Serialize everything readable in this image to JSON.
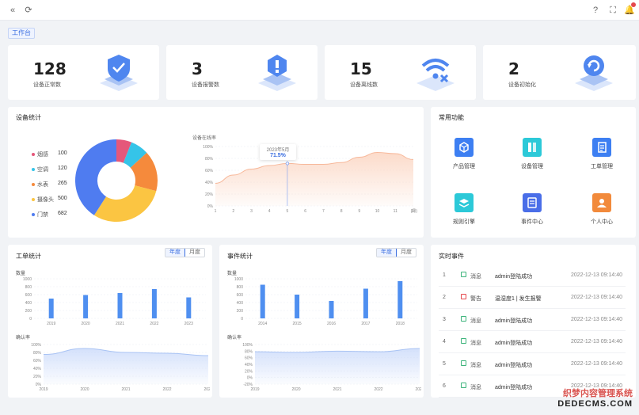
{
  "header": {
    "tag": "工作台"
  },
  "stats": [
    {
      "value": "128",
      "label": "设备正常数"
    },
    {
      "value": "3",
      "label": "设备报警数"
    },
    {
      "value": "15",
      "label": "设备离线数"
    },
    {
      "value": "2",
      "label": "设备初始化"
    }
  ],
  "device_stats": {
    "title": "设备统计",
    "legend": [
      {
        "name": "烟感",
        "value": "100",
        "color": "#e5577a"
      },
      {
        "name": "空调",
        "value": "120",
        "color": "#35c4e8"
      },
      {
        "name": "水表",
        "value": "265",
        "color": "#f58a3c"
      },
      {
        "name": "摄像头",
        "value": "500",
        "color": "#fbc542"
      },
      {
        "name": "门禁",
        "value": "682",
        "color": "#4f7cf0"
      }
    ],
    "online_label": "设备在线率",
    "tooltip_date": "2023年5月",
    "tooltip_value": "71.5%",
    "x_unit": "(月)"
  },
  "functions": {
    "title": "常用功能",
    "items": [
      {
        "label": "产品管理",
        "color": "#3d7ff2",
        "icon": "cube-icon"
      },
      {
        "label": "设备管理",
        "color": "#2cc9d8",
        "icon": "device-icon"
      },
      {
        "label": "工单管理",
        "color": "#3d7ff2",
        "icon": "document-icon"
      },
      {
        "label": "规则引擎",
        "color": "#2cc9d8",
        "icon": "rule-icon"
      },
      {
        "label": "事件中心",
        "color": "#4a6ee8",
        "icon": "event-icon"
      },
      {
        "label": "个人中心",
        "color": "#f28a3b",
        "icon": "user-icon"
      }
    ]
  },
  "workorder": {
    "title": "工单统计",
    "tab_year": "年度",
    "tab_month": "月度",
    "count_label": "数量",
    "rate_label": "确认率"
  },
  "events_stat": {
    "title": "事件统计",
    "tab_year": "年度",
    "tab_month": "月度",
    "count_label": "数量",
    "rate_label": "确认率"
  },
  "realtime": {
    "title": "实时事件",
    "rows": [
      {
        "index": "1",
        "type": "消息",
        "content": "admin登陆成功",
        "time": "2022-12-13 09:14:40",
        "color": "#3bb37a"
      },
      {
        "index": "2",
        "type": "警告",
        "content": "温湿度1 | 发生报警",
        "time": "2022-12-13 09:14:40",
        "color": "#e5484d"
      },
      {
        "index": "3",
        "type": "消息",
        "content": "admin登陆成功",
        "time": "2022-12-13 09:14:40",
        "color": "#3bb37a"
      },
      {
        "index": "4",
        "type": "消息",
        "content": "admin登陆成功",
        "time": "2022-12-13 09:14:40",
        "color": "#3bb37a"
      },
      {
        "index": "5",
        "type": "消息",
        "content": "admin登陆成功",
        "time": "2022-12-13 09:14:40",
        "color": "#3bb37a"
      },
      {
        "index": "6",
        "type": "消息",
        "content": "admin登陆成功",
        "time": "2022-12-13 09:14:40",
        "color": "#3bb37a"
      }
    ]
  },
  "watermark": {
    "line1": "织梦内容管理系统",
    "line2": "DEDECMS.COM"
  },
  "chart_data": [
    {
      "type": "pie",
      "categories": [
        "烟感",
        "空调",
        "水表",
        "摄像头",
        "门禁"
      ],
      "values": [
        100,
        120,
        265,
        500,
        682
      ],
      "colors": [
        "#e5577a",
        "#35c4e8",
        "#f58a3c",
        "#fbc542",
        "#4f7cf0"
      ]
    },
    {
      "type": "area",
      "ylabel": "设备在线率",
      "x": [
        1,
        2,
        3,
        4,
        5,
        6,
        7,
        8,
        9,
        10,
        11,
        12
      ],
      "y": [
        38,
        52,
        62,
        68,
        71.5,
        70,
        70,
        73,
        82,
        90,
        88,
        78
      ],
      "y_ticks": [
        "100%",
        "80%",
        "60%",
        "40%",
        "20%",
        "0%"
      ],
      "ylim": [
        0,
        100
      ],
      "xunit": "(月)"
    },
    {
      "type": "bar",
      "ylabel": "数量",
      "categories": [
        "2019",
        "2020",
        "2021",
        "2022",
        "2023"
      ],
      "values": [
        500,
        590,
        640,
        740,
        530
      ],
      "y_ticks": [
        "1000",
        "800",
        "600",
        "400",
        "200",
        "0"
      ],
      "ylim": [
        0,
        1000
      ]
    },
    {
      "type": "area",
      "ylabel": "确认率",
      "x": [
        "2019",
        "2020",
        "2021",
        "2022",
        "2023"
      ],
      "y": [
        75,
        90,
        80,
        78,
        72
      ],
      "y_ticks": [
        "100%",
        "80%",
        "60%",
        "40%",
        "20%",
        "0%"
      ],
      "ylim": [
        0,
        100
      ]
    },
    {
      "type": "bar",
      "ylabel": "数量",
      "categories": [
        "2014",
        "2015",
        "2016",
        "2017",
        "2018"
      ],
      "values": [
        850,
        600,
        440,
        750,
        940
      ],
      "y_ticks": [
        "1000",
        "800",
        "600",
        "400",
        "200",
        "0"
      ],
      "ylim": [
        0,
        1000
      ]
    },
    {
      "type": "area",
      "ylabel": "确认率",
      "x": [
        "2019",
        "2020",
        "2021",
        "2022",
        "2023"
      ],
      "y": [
        78,
        76,
        80,
        78,
        88
      ],
      "y_ticks": [
        "100%",
        "80%",
        "60%",
        "40%",
        "20%",
        "0%",
        "-20%"
      ],
      "ylim": [
        -20,
        100
      ]
    }
  ]
}
